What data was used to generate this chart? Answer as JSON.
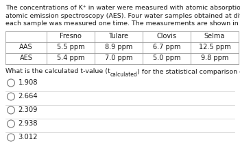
{
  "para_lines": [
    "The concentrations of K⁺ in water were measured with atomic absorption spectroscopy (AAS) and",
    "atomic emission spectroscopy (AES). Four water samples obtained at different cities were used, and",
    "each sample was measured one time. The measurements are shown in the table below:"
  ],
  "table_headers": [
    "",
    "Fresno",
    "Tulare",
    "Clovis",
    "Selma"
  ],
  "table_rows": [
    [
      "AAS",
      "5.5 ppm",
      "8.9 ppm",
      "6.7 ppm",
      "12.5 ppm"
    ],
    [
      "AES",
      "5.4 ppm",
      "7.0 ppm",
      "5.0 ppm",
      "9.8 ppm"
    ]
  ],
  "question_main": "What is the calculated t-value (t",
  "question_sub": "calculated",
  "question_end": ") for the statistical comparison of these two methods?",
  "options": [
    "1.908",
    "2.664",
    "2.309",
    "2.938",
    "3.012"
  ],
  "bg_color": "#ffffff",
  "text_color": "#1a1a1a",
  "separator_color": "#cccccc",
  "table_line_color": "#999999",
  "font_size_para": 6.8,
  "font_size_table_header": 7.0,
  "font_size_table_body": 7.0,
  "font_size_question": 6.8,
  "font_size_options": 7.2,
  "font_size_sub": 5.5
}
